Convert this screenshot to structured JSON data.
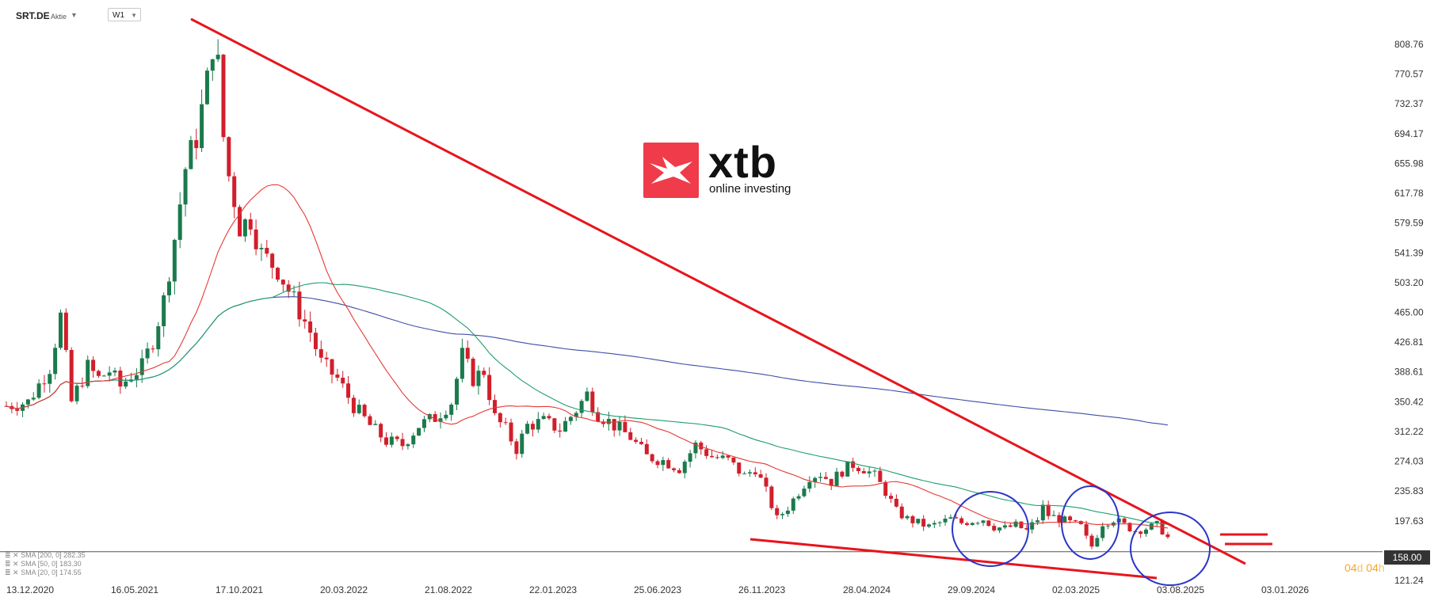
{
  "toolbar": {
    "symbol": "SRT.DE",
    "symbol_type": "Aktie",
    "timeframe": "W1"
  },
  "logo": {
    "brand": "xtb",
    "tagline": "online investing",
    "accent_color": "#ef3b4a"
  },
  "legend": [
    {
      "label": "SMA [200, 0] 282.35",
      "color": "#3f4ea8"
    },
    {
      "label": "SMA [50, 0] 183.30",
      "color": "#1e9e6a"
    },
    {
      "label": "SMA [20, 0] 174.55",
      "color": "#e53935"
    }
  ],
  "current_price": "158.00",
  "countdown": {
    "days": "04",
    "days_unit": "d",
    "hours": "04",
    "hours_unit": "h"
  },
  "chart_data": {
    "type": "candlestick",
    "timeframe": "W1",
    "y_axis_ticks": [
      "808.76",
      "770.57",
      "732.37",
      "694.17",
      "655.98",
      "617.78",
      "579.59",
      "541.39",
      "503.20",
      "465.00",
      "426.81",
      "388.61",
      "350.42",
      "312.22",
      "274.03",
      "235.83",
      "197.63",
      "158.00",
      "121.24"
    ],
    "ylim": [
      121.24,
      808.76
    ],
    "x_axis_ticks": [
      "13.12.2020",
      "16.05.2021",
      "17.10.2021",
      "20.03.2022",
      "21.08.2022",
      "22.01.2023",
      "25.06.2023",
      "26.11.2023",
      "28.04.2024",
      "29.09.2024",
      "02.03.2025",
      "03.08.2025",
      "03.01.2026"
    ],
    "price_path": [
      [
        0,
        345
      ],
      [
        4,
        350
      ],
      [
        8,
        395
      ],
      [
        10,
        460
      ],
      [
        12,
        350
      ],
      [
        15,
        395
      ],
      [
        17,
        380
      ],
      [
        19,
        390
      ],
      [
        21,
        370
      ],
      [
        23,
        385
      ],
      [
        25,
        395
      ],
      [
        27,
        430
      ],
      [
        29,
        480
      ],
      [
        31,
        560
      ],
      [
        33,
        650
      ],
      [
        35,
        690
      ],
      [
        37,
        760
      ],
      [
        38,
        810
      ],
      [
        39,
        780
      ],
      [
        40,
        690
      ],
      [
        41,
        640
      ],
      [
        42,
        610
      ],
      [
        43,
        575
      ],
      [
        45,
        585
      ],
      [
        47,
        540
      ],
      [
        50,
        520
      ],
      [
        53,
        480
      ],
      [
        56,
        440
      ],
      [
        58,
        400
      ],
      [
        61,
        380
      ],
      [
        64,
        345
      ],
      [
        67,
        320
      ],
      [
        70,
        300
      ],
      [
        73,
        295
      ],
      [
        76,
        320
      ],
      [
        79,
        330
      ],
      [
        82,
        350
      ],
      [
        84,
        410
      ],
      [
        86,
        380
      ],
      [
        88,
        390
      ],
      [
        90,
        330
      ],
      [
        92,
        315
      ],
      [
        94,
        290
      ],
      [
        96,
        320
      ],
      [
        99,
        325
      ],
      [
        102,
        315
      ],
      [
        105,
        340
      ],
      [
        107,
        360
      ],
      [
        109,
        335
      ],
      [
        112,
        320
      ],
      [
        115,
        305
      ],
      [
        118,
        280
      ],
      [
        121,
        275
      ],
      [
        124,
        265
      ],
      [
        127,
        295
      ],
      [
        130,
        280
      ],
      [
        133,
        275
      ],
      [
        136,
        255
      ],
      [
        138,
        265
      ],
      [
        140,
        235
      ],
      [
        142,
        200
      ],
      [
        144,
        215
      ],
      [
        146,
        235
      ],
      [
        148,
        255
      ],
      [
        150,
        258
      ],
      [
        152,
        248
      ],
      [
        154,
        262
      ],
      [
        156,
        270
      ],
      [
        158,
        265
      ],
      [
        160,
        255
      ],
      [
        162,
        235
      ],
      [
        164,
        210
      ],
      [
        166,
        200
      ],
      [
        168,
        195
      ],
      [
        170,
        190
      ],
      [
        172,
        195
      ],
      [
        174,
        200
      ],
      [
        176,
        195
      ],
      [
        178,
        198
      ],
      [
        180,
        200
      ],
      [
        182,
        190
      ],
      [
        184,
        188
      ],
      [
        186,
        192
      ],
      [
        188,
        185
      ],
      [
        190,
        200
      ],
      [
        191,
        215
      ],
      [
        192,
        205
      ],
      [
        194,
        200
      ],
      [
        196,
        195
      ],
      [
        198,
        190
      ],
      [
        199,
        175
      ],
      [
        200,
        165
      ],
      [
        202,
        195
      ],
      [
        204,
        200
      ],
      [
        206,
        192
      ],
      [
        208,
        185
      ],
      [
        210,
        188
      ],
      [
        212,
        192
      ],
      [
        213,
        185
      ],
      [
        214,
        176
      ]
    ],
    "series": [
      {
        "name": "SMA [200, 0] 282.35",
        "last": 282.35
      },
      {
        "name": "SMA [50, 0] 183.30",
        "last": 183.3
      },
      {
        "name": "SMA [20, 0] 174.55",
        "last": 174.55
      }
    ],
    "annotations": [
      {
        "kind": "trendline",
        "from": [
          33,
          840
        ],
        "to": [
          221,
          158
        ]
      },
      {
        "kind": "trendline",
        "from": [
          133,
          195
        ],
        "to": [
          205,
          120
        ]
      },
      {
        "kind": "circle",
        "center": [
          177,
          195
        ]
      },
      {
        "kind": "circle",
        "center": [
          195,
          215
        ]
      },
      {
        "kind": "circle",
        "center": [
          211,
          177
        ]
      },
      {
        "kind": "double-line",
        "price": 192
      }
    ],
    "grid": false,
    "last_price_line": 158.0
  }
}
